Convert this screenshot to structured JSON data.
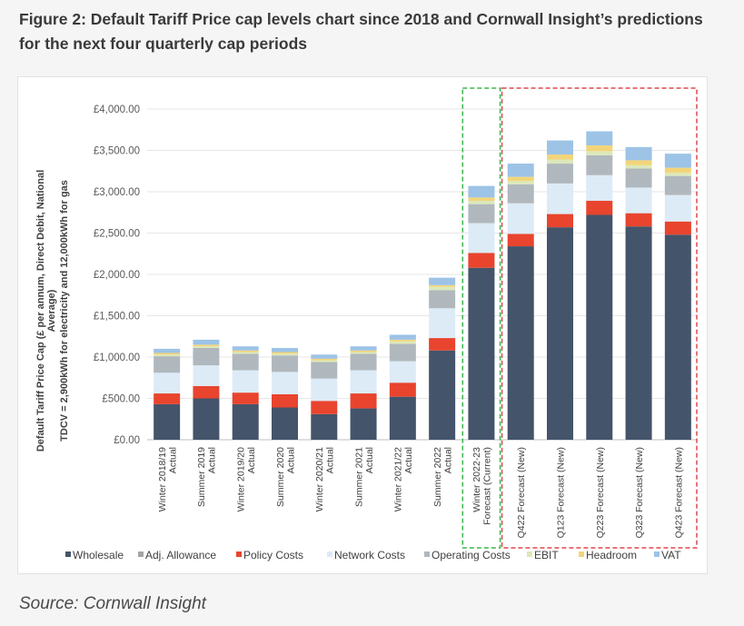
{
  "caption": "Figure 2: Default Tariff Price cap levels chart since 2018 and Cornwall Insight’s predictions for the next four quarterly cap periods",
  "source": "Source: Cornwall Insight",
  "chart_data": {
    "type": "bar",
    "stacked": true,
    "title": "",
    "xlabel": "",
    "ylabel_lines": [
      "Default Tariff Price Cap (£ per annum, Direct Debit, National",
      "Average)",
      "TDCV = 2,900kWh for electricity and 12,000kWh for gas"
    ],
    "ylim": [
      0,
      4000
    ],
    "yticks": [
      0,
      500,
      1000,
      1500,
      2000,
      2500,
      3000,
      3500,
      4000
    ],
    "ytick_labels": [
      "£0.00",
      "£500.00",
      "£1,000.00",
      "£1,500.00",
      "£2,000.00",
      "£2,500.00",
      "£3,000.00",
      "£3,500.00",
      "£4,000.00"
    ],
    "grid": true,
    "legend_position": "bottom",
    "categories": [
      [
        "Winter 2018/19",
        "Actual"
      ],
      [
        "Summer 2019",
        "Actual"
      ],
      [
        "Winter 2019/20",
        "Actual"
      ],
      [
        "Summer 2020",
        "Actual"
      ],
      [
        "Winter 2020/21",
        "Actual"
      ],
      [
        "Summer 2021",
        "Actual"
      ],
      [
        "Winter 2021/22",
        "Actual"
      ],
      [
        "Summer 2022",
        "Actual"
      ],
      [
        "Winter 2022-23",
        "Forecast (Current)"
      ],
      [
        "Q422 Forecast (New)"
      ],
      [
        "Q123 Forecast (New)"
      ],
      [
        "Q223 Forecast (New)"
      ],
      [
        "Q323 Forecast (New)"
      ],
      [
        "Q423 Forecast (New)"
      ]
    ],
    "series": [
      {
        "name": "Wholesale",
        "color": "#44546a",
        "values": [
          430,
          500,
          430,
          390,
          310,
          380,
          520,
          1080,
          2080,
          2340,
          2570,
          2720,
          2580,
          2480
        ]
      },
      {
        "name": "Adj. Allowance",
        "color": "#a5a5a5",
        "values": [
          0,
          0,
          0,
          0,
          0,
          0,
          0,
          0,
          0,
          0,
          0,
          0,
          0,
          0
        ]
      },
      {
        "name": "Policy Costs",
        "color": "#e8442e",
        "values": [
          130,
          150,
          140,
          160,
          160,
          180,
          170,
          150,
          180,
          150,
          160,
          170,
          160,
          160
        ]
      },
      {
        "name": "Network Costs",
        "color": "#ddebf7",
        "values": [
          250,
          250,
          270,
          270,
          270,
          280,
          260,
          360,
          360,
          370,
          370,
          310,
          310,
          320
        ]
      },
      {
        "name": "Operating Costs",
        "color": "#b0b8bd",
        "values": [
          200,
          210,
          200,
          200,
          200,
          200,
          210,
          220,
          230,
          230,
          240,
          240,
          230,
          230
        ]
      },
      {
        "name": "EBIT",
        "color": "#dce8ba",
        "values": [
          20,
          20,
          20,
          20,
          20,
          20,
          30,
          40,
          40,
          40,
          50,
          50,
          40,
          40
        ]
      },
      {
        "name": "Headroom",
        "color": "#f2d57a",
        "values": [
          20,
          20,
          20,
          20,
          20,
          20,
          20,
          20,
          40,
          50,
          60,
          70,
          60,
          60
        ]
      },
      {
        "name": "VAT",
        "color": "#9dc3e6",
        "values": [
          50,
          60,
          50,
          50,
          50,
          50,
          60,
          90,
          140,
          160,
          170,
          170,
          160,
          170
        ]
      }
    ],
    "annotations": [
      {
        "label": "current-forecast-box",
        "categories": [
          8
        ],
        "color": "#3bb54a",
        "style": "dashed"
      },
      {
        "label": "new-forecast-box",
        "categories": [
          9,
          10,
          11,
          12,
          13
        ],
        "color": "#e0474c",
        "style": "dashed"
      }
    ]
  }
}
